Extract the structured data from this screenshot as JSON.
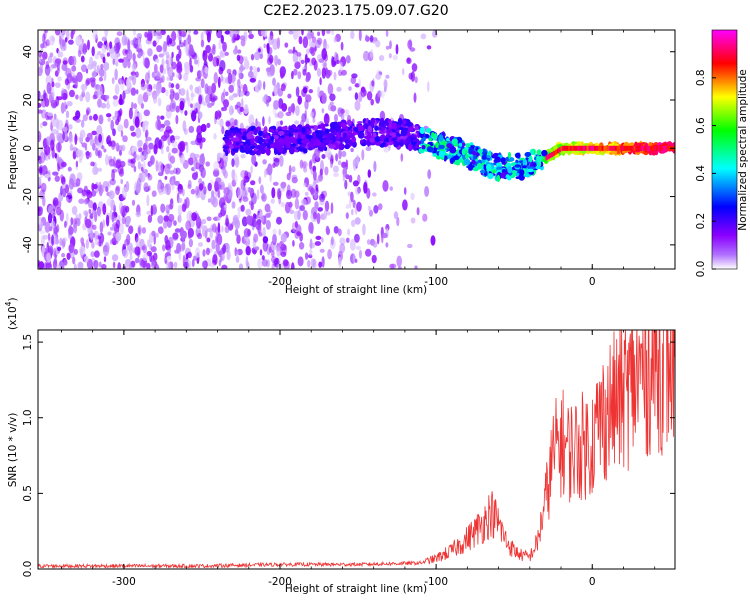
{
  "title": "C2E2.2023.175.09.07.G20",
  "chart_data": [
    {
      "type": "heatmap",
      "xlabel": "Height of straight line (km)",
      "ylabel": "Frequency (Hz)",
      "xlim": [
        -355,
        53
      ],
      "ylim": [
        -50,
        49
      ],
      "x_ticks": [
        -300,
        -200,
        -100,
        0
      ],
      "x_tick_labels": [
        "-300",
        "-200",
        "-100",
        "0"
      ],
      "y_ticks": [
        -40,
        -20,
        0,
        20,
        40
      ],
      "y_tick_labels": [
        "-40",
        "-20",
        "0",
        "20",
        "40"
      ],
      "colorbar": {
        "label": "Normalized spectral amplitude",
        "range": [
          0,
          1
        ],
        "ticks": [
          0,
          0.2,
          0.4,
          0.6,
          0.8
        ],
        "tick_labels": [
          "0.0",
          "0.2",
          "0.4",
          "0.6",
          "0.8"
        ],
        "colormap": [
          "#ffffff",
          "#8b00ff",
          "#0000ff",
          "#00ffff",
          "#00ff00",
          "#ffff00",
          "#ff0000",
          "#ff00ff"
        ]
      },
      "ridge_frequency": [
        {
          "x": -220,
          "y": 3
        },
        {
          "x": -180,
          "y": 4
        },
        {
          "x": -140,
          "y": 7
        },
        {
          "x": -120,
          "y": 6
        },
        {
          "x": -100,
          "y": 2
        },
        {
          "x": -80,
          "y": -3
        },
        {
          "x": -60,
          "y": -8
        },
        {
          "x": -45,
          "y": -7
        },
        {
          "x": -30,
          "y": -4
        },
        {
          "x": -20,
          "y": 0
        },
        {
          "x": 0,
          "y": 0
        },
        {
          "x": 53,
          "y": 0
        }
      ],
      "grid": false
    },
    {
      "type": "line",
      "xlabel": "Height of straight line (km)",
      "ylabel": "SNR (10 * v/v)",
      "y_multiplier": "(x10",
      "y_multiplier_exp": "4",
      "y_multiplier_close": ")",
      "xlim": [
        -355,
        53
      ],
      "ylim": [
        0,
        1.58
      ],
      "x_ticks": [
        -300,
        -200,
        -100,
        0
      ],
      "x_tick_labels": [
        "-300",
        "-200",
        "-100",
        "0"
      ],
      "y_ticks": [
        0,
        0.5,
        1.0,
        1.5
      ],
      "y_tick_labels": [
        "0.0",
        "0.5",
        "1.0",
        "1.5"
      ],
      "color": "#ee3333",
      "series": [
        {
          "x": [
            -355,
            -300,
            -250,
            -200,
            -150,
            -110,
            -100,
            -90,
            -80,
            -70,
            -65,
            -60,
            -55,
            -50,
            -45,
            -40,
            -35,
            -30,
            -25,
            -20,
            -15,
            -10,
            -5,
            0,
            5,
            10,
            15,
            20,
            25,
            30,
            35,
            40,
            45,
            50,
            53
          ],
          "y": [
            0.02,
            0.02,
            0.02,
            0.03,
            0.03,
            0.04,
            0.07,
            0.12,
            0.2,
            0.3,
            0.38,
            0.3,
            0.18,
            0.12,
            0.09,
            0.08,
            0.18,
            0.45,
            0.75,
            0.85,
            0.78,
            0.8,
            0.82,
            0.85,
            0.98,
            1.05,
            1.1,
            1.15,
            1.2,
            1.28,
            1.32,
            1.38,
            1.36,
            1.38,
            1.4
          ]
        }
      ],
      "grid": false
    }
  ]
}
